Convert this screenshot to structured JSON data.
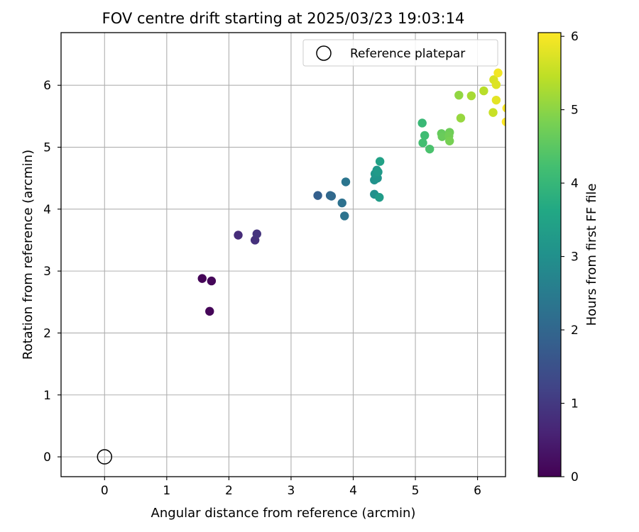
{
  "chart_data": {
    "type": "scatter",
    "title": "FOV centre drift starting at 2025/03/23 19:03:14",
    "xlabel": "Angular distance from reference (arcmin)",
    "ylabel": "Rotation from reference (arcmin)",
    "xlim": [
      -0.7,
      6.45
    ],
    "ylim": [
      -0.32,
      6.85
    ],
    "xticks": [
      "0",
      "1",
      "2",
      "3",
      "4",
      "5",
      "6"
    ],
    "yticks": [
      "0",
      "1",
      "2",
      "3",
      "4",
      "5",
      "6"
    ],
    "grid": true,
    "legend": {
      "placement": "top-right",
      "entries": [
        "Reference platepar"
      ]
    },
    "reference_point": {
      "x": 0,
      "y": 0,
      "style": "hollow-circle"
    },
    "colorbar": {
      "label": "Hours from first FF file",
      "range": [
        0,
        6.05
      ],
      "ticks": [
        "0",
        "1",
        "2",
        "3",
        "4",
        "5",
        "6"
      ],
      "colormap": "viridis"
    },
    "points": [
      {
        "x": 1.57,
        "y": 2.88,
        "c": 0.05
      },
      {
        "x": 1.72,
        "y": 2.84,
        "c": 0.1
      },
      {
        "x": 1.69,
        "y": 2.35,
        "c": 0.08
      },
      {
        "x": 2.15,
        "y": 3.58,
        "c": 0.75
      },
      {
        "x": 2.42,
        "y": 3.5,
        "c": 0.85
      },
      {
        "x": 2.45,
        "y": 3.6,
        "c": 0.9
      },
      {
        "x": 3.43,
        "y": 4.22,
        "c": 1.85
      },
      {
        "x": 3.63,
        "y": 4.22,
        "c": 2.0
      },
      {
        "x": 3.65,
        "y": 4.21,
        "c": 2.05
      },
      {
        "x": 3.82,
        "y": 4.1,
        "c": 2.25
      },
      {
        "x": 3.86,
        "y": 3.89,
        "c": 2.3
      },
      {
        "x": 3.88,
        "y": 4.44,
        "c": 2.35
      },
      {
        "x": 4.34,
        "y": 4.24,
        "c": 3.0
      },
      {
        "x": 4.34,
        "y": 4.47,
        "c": 3.05
      },
      {
        "x": 4.39,
        "y": 4.5,
        "c": 3.1
      },
      {
        "x": 4.35,
        "y": 4.57,
        "c": 3.15
      },
      {
        "x": 4.38,
        "y": 4.63,
        "c": 3.2
      },
      {
        "x": 4.4,
        "y": 4.6,
        "c": 3.25
      },
      {
        "x": 4.42,
        "y": 4.19,
        "c": 3.3
      },
      {
        "x": 4.43,
        "y": 4.77,
        "c": 3.45
      },
      {
        "x": 5.11,
        "y": 5.39,
        "c": 4.05
      },
      {
        "x": 5.15,
        "y": 5.19,
        "c": 4.15
      },
      {
        "x": 5.12,
        "y": 5.07,
        "c": 4.2
      },
      {
        "x": 5.23,
        "y": 4.97,
        "c": 4.3
      },
      {
        "x": 5.42,
        "y": 5.22,
        "c": 4.6
      },
      {
        "x": 5.43,
        "y": 5.17,
        "c": 4.65
      },
      {
        "x": 5.55,
        "y": 5.24,
        "c": 4.7
      },
      {
        "x": 5.54,
        "y": 5.18,
        "c": 4.75
      },
      {
        "x": 5.55,
        "y": 5.1,
        "c": 4.8
      },
      {
        "x": 5.7,
        "y": 5.84,
        "c": 5.05
      },
      {
        "x": 5.73,
        "y": 5.47,
        "c": 5.1
      },
      {
        "x": 5.9,
        "y": 5.83,
        "c": 5.25
      },
      {
        "x": 6.1,
        "y": 5.91,
        "c": 5.4
      },
      {
        "x": 6.25,
        "y": 5.56,
        "c": 5.55
      },
      {
        "x": 6.26,
        "y": 6.09,
        "c": 5.7
      },
      {
        "x": 6.3,
        "y": 6.01,
        "c": 5.75
      },
      {
        "x": 6.3,
        "y": 5.76,
        "c": 5.8
      },
      {
        "x": 6.33,
        "y": 6.2,
        "c": 5.95
      },
      {
        "x": 6.47,
        "y": 5.63,
        "c": 6.0
      },
      {
        "x": 6.46,
        "y": 5.41,
        "c": 6.05
      }
    ]
  }
}
